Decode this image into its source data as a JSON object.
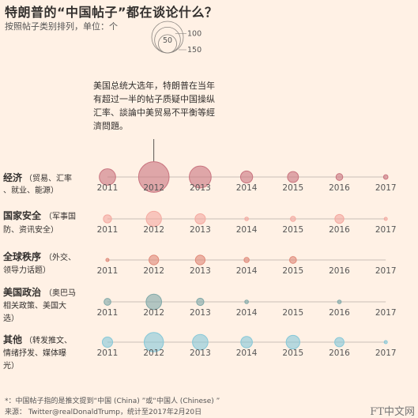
{
  "title": "特朗普的“中国帖子”都在谈论什么？",
  "subtitle": "按照帖子类别排列，单位：个",
  "colors": {
    "background": "#fff1e5",
    "economy": "#c9747f",
    "security": "#f4a9a0",
    "global": "#e08878",
    "us_politics": "#7fa8a8",
    "other": "#86c8d8",
    "axis": "#c9bfb6"
  },
  "annotation": {
    "lines": [
      "美国总统大选年，特朗普在当年",
      "有超过一半的帖子质疑中国操纵",
      "汇率、談論中美贸易不平衡等經",
      "濟問題。"
    ]
  },
  "footnote": "*：中国帖子指的是推文提到“中国 (China) ”或“中国人 (Chinese) ”",
  "source": "来源： Twitter@realDonaldTrump，统计至2017年2月20日",
  "brand": "FT中文网",
  "chart_data": {
    "type": "scatter",
    "encoding": "bubble area proportional to number of posts",
    "x": [
      "2011",
      "2012",
      "2013",
      "2014",
      "2015",
      "2016",
      "2017"
    ],
    "legend": {
      "title": "",
      "sizes": [
        50,
        100,
        150
      ],
      "labels": [
        "50",
        "100",
        "150"
      ]
    },
    "series": [
      {
        "key": "economy",
        "name": "经济",
        "detail": [
          "（贸易、汇率",
          "、就业、能源）"
        ],
        "values": [
          40,
          140,
          72,
          22,
          18,
          7,
          3
        ]
      },
      {
        "key": "security",
        "name": "国家安全",
        "detail": [
          "（军事国",
          "防、资讯安全）"
        ],
        "values": [
          10,
          35,
          16,
          2,
          4,
          12,
          1
        ]
      },
      {
        "key": "global",
        "name": "全球秩序",
        "detail": [
          "（外交、",
          "领导力话题）"
        ],
        "values": [
          1,
          14,
          14,
          4,
          7,
          0,
          0
        ]
      },
      {
        "key": "us_politics",
        "name": "美国政治",
        "detail": [
          "（奥巴马",
          "相关政策、美国大",
          "选）"
        ],
        "values": [
          7,
          36,
          8,
          2,
          0,
          2,
          0
        ]
      },
      {
        "key": "other",
        "name": "其他",
        "detail": [
          "（转发推文、",
          "情绪抒发、媒体曝",
          "光）"
        ],
        "values": [
          16,
          56,
          36,
          20,
          28,
          13,
          1
        ]
      }
    ]
  }
}
